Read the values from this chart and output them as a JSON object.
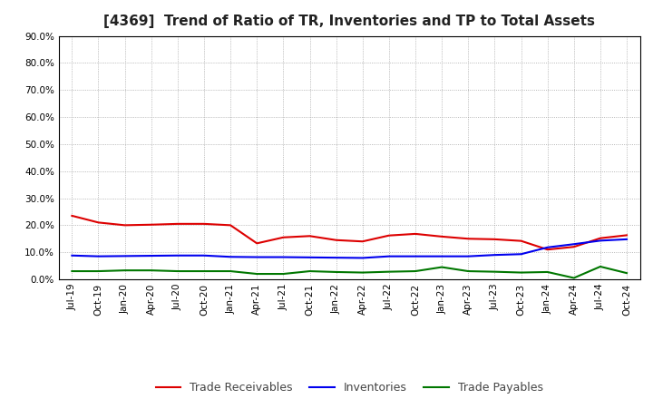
{
  "title": "[4369]  Trend of Ratio of TR, Inventories and TP to Total Assets",
  "x_labels": [
    "Jul-19",
    "Oct-19",
    "Jan-20",
    "Apr-20",
    "Jul-20",
    "Oct-20",
    "Jan-21",
    "Apr-21",
    "Jul-21",
    "Oct-21",
    "Jan-22",
    "Apr-22",
    "Jul-22",
    "Oct-22",
    "Jan-23",
    "Apr-23",
    "Jul-23",
    "Oct-23",
    "Jan-24",
    "Apr-24",
    "Jul-24",
    "Oct-24"
  ],
  "trade_receivables": [
    0.235,
    0.21,
    0.2,
    0.202,
    0.205,
    0.205,
    0.2,
    0.133,
    0.155,
    0.16,
    0.145,
    0.14,
    0.162,
    0.168,
    0.158,
    0.15,
    0.148,
    0.142,
    0.11,
    0.12,
    0.152,
    0.163
  ],
  "inventories": [
    0.088,
    0.085,
    0.086,
    0.087,
    0.088,
    0.088,
    0.083,
    0.082,
    0.082,
    0.081,
    0.08,
    0.079,
    0.085,
    0.085,
    0.085,
    0.085,
    0.09,
    0.093,
    0.118,
    0.13,
    0.143,
    0.148
  ],
  "trade_payables": [
    0.03,
    0.03,
    0.033,
    0.033,
    0.03,
    0.03,
    0.03,
    0.02,
    0.02,
    0.03,
    0.027,
    0.025,
    0.028,
    0.03,
    0.045,
    0.03,
    0.028,
    0.025,
    0.027,
    0.005,
    0.047,
    0.023
  ],
  "ylim": [
    0.0,
    0.9
  ],
  "yticks": [
    0.0,
    0.1,
    0.2,
    0.3,
    0.4,
    0.5,
    0.6,
    0.7,
    0.8,
    0.9
  ],
  "line_colors": {
    "trade_receivables": "#dd0000",
    "inventories": "#0000ee",
    "trade_payables": "#007700"
  },
  "legend_labels": [
    "Trade Receivables",
    "Inventories",
    "Trade Payables"
  ],
  "background_color": "#ffffff",
  "grid_color": "#999999",
  "title_fontsize": 11,
  "tick_fontsize": 7.5,
  "legend_fontsize": 9
}
